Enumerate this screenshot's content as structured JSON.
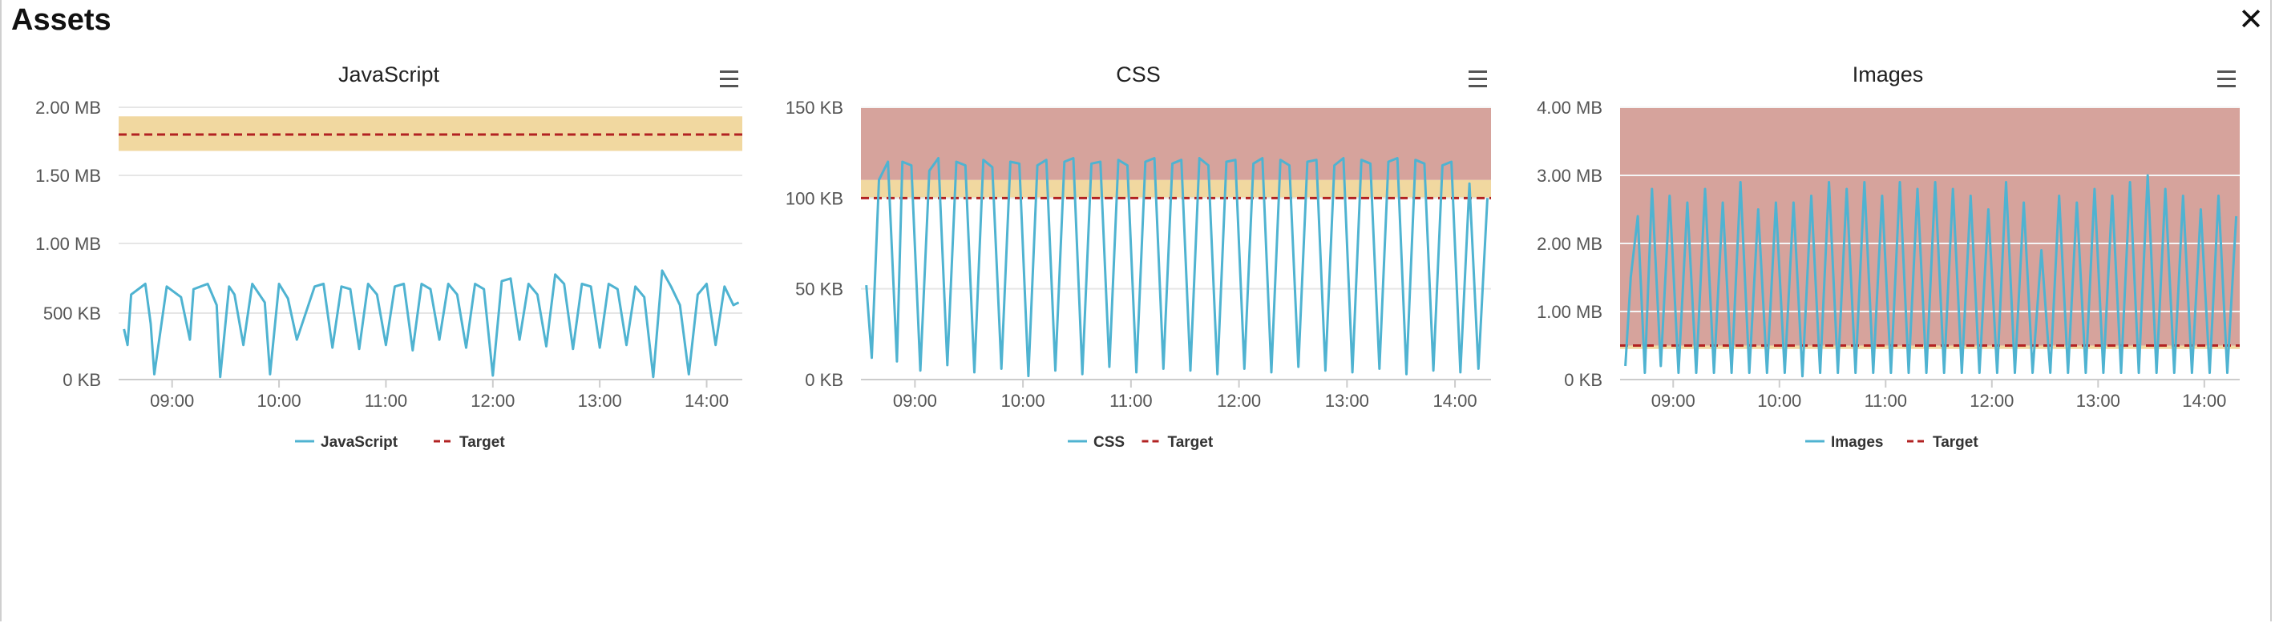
{
  "panel": {
    "title": "Assets",
    "close_label": "✕"
  },
  "colors": {
    "series": "#4fb3d1",
    "target": "#b22222",
    "warn_band": "#f1d8a0",
    "bad_band": "#d6a39c",
    "grid": "#e6e6e6",
    "axis_text": "#555555"
  },
  "icons": {
    "menu": "hamburger-menu-icon",
    "close": "close-icon"
  },
  "chart_data": [
    {
      "type": "line",
      "title": "JavaScript",
      "y_unit": "KB",
      "ylim": [
        0,
        2048
      ],
      "y_ticks": [
        {
          "v": 0,
          "label": "0 KB"
        },
        {
          "v": 500,
          "label": "500 KB"
        },
        {
          "v": 1024,
          "label": "1.00 MB"
        },
        {
          "v": 1536,
          "label": "1.50 MB"
        },
        {
          "v": 2048,
          "label": "2.00 MB"
        }
      ],
      "x_range": [
        "08:30",
        "14:20"
      ],
      "x_ticks": [
        "09:00",
        "10:00",
        "11:00",
        "12:00",
        "13:00",
        "14:00"
      ],
      "bands": [
        {
          "from": 1720,
          "to": 1980,
          "color": "warn"
        }
      ],
      "target": 1843,
      "series": [
        {
          "name": "JavaScript",
          "x": [
            "08:33",
            "08:35",
            "08:37",
            "08:45",
            "08:48",
            "08:50",
            "08:57",
            "09:05",
            "09:10",
            "09:12",
            "09:20",
            "09:25",
            "09:27",
            "09:32",
            "09:35",
            "09:40",
            "09:45",
            "09:52",
            "09:55",
            "10:00",
            "10:05",
            "10:10",
            "10:20",
            "10:25",
            "10:30",
            "10:35",
            "10:40",
            "10:45",
            "10:50",
            "10:55",
            "11:00",
            "11:05",
            "11:10",
            "11:15",
            "11:20",
            "11:25",
            "11:30",
            "11:35",
            "11:40",
            "11:45",
            "11:50",
            "11:55",
            "12:00",
            "12:05",
            "12:10",
            "12:15",
            "12:20",
            "12:25",
            "12:30",
            "12:35",
            "12:40",
            "12:45",
            "12:50",
            "12:55",
            "13:00",
            "13:05",
            "13:10",
            "13:15",
            "13:20",
            "13:25",
            "13:30",
            "13:35",
            "13:40",
            "13:45",
            "13:50",
            "13:55",
            "14:00",
            "14:05",
            "14:10",
            "14:15",
            "14:18"
          ],
          "values": [
            380,
            260,
            640,
            720,
            420,
            40,
            700,
            620,
            300,
            680,
            720,
            560,
            20,
            700,
            640,
            260,
            720,
            580,
            40,
            720,
            610,
            300,
            700,
            720,
            240,
            700,
            680,
            230,
            720,
            640,
            260,
            700,
            720,
            220,
            720,
            680,
            300,
            720,
            640,
            240,
            720,
            680,
            30,
            740,
            760,
            300,
            720,
            640,
            250,
            790,
            720,
            230,
            720,
            700,
            240,
            720,
            680,
            260,
            700,
            620,
            20,
            820,
            700,
            560,
            40,
            640,
            720,
            260,
            700,
            560,
            580
          ]
        }
      ]
    },
    {
      "type": "line",
      "title": "CSS",
      "y_unit": "KB",
      "ylim": [
        0,
        150
      ],
      "y_ticks": [
        {
          "v": 0,
          "label": "0 KB"
        },
        {
          "v": 50,
          "label": "50 KB"
        },
        {
          "v": 100,
          "label": "100 KB"
        },
        {
          "v": 150,
          "label": "150 KB"
        }
      ],
      "x_range": [
        "08:30",
        "14:20"
      ],
      "x_ticks": [
        "09:00",
        "10:00",
        "11:00",
        "12:00",
        "13:00",
        "14:00"
      ],
      "bands": [
        {
          "from": 100,
          "to": 110,
          "color": "warn"
        },
        {
          "from": 110,
          "to": 150,
          "color": "bad"
        }
      ],
      "target": 100,
      "series": [
        {
          "name": "CSS",
          "x": [
            "08:33",
            "08:36",
            "08:40",
            "08:45",
            "08:50",
            "08:53",
            "08:58",
            "09:03",
            "09:08",
            "09:13",
            "09:18",
            "09:23",
            "09:28",
            "09:33",
            "09:38",
            "09:43",
            "09:48",
            "09:53",
            "09:58",
            "10:03",
            "10:08",
            "10:13",
            "10:18",
            "10:23",
            "10:28",
            "10:33",
            "10:38",
            "10:43",
            "10:48",
            "10:53",
            "10:58",
            "11:03",
            "11:08",
            "11:13",
            "11:18",
            "11:23",
            "11:28",
            "11:33",
            "11:38",
            "11:43",
            "11:48",
            "11:53",
            "11:58",
            "12:03",
            "12:08",
            "12:13",
            "12:18",
            "12:23",
            "12:28",
            "12:33",
            "12:38",
            "12:43",
            "12:48",
            "12:53",
            "12:58",
            "13:03",
            "13:08",
            "13:13",
            "13:18",
            "13:23",
            "13:28",
            "13:33",
            "13:38",
            "13:43",
            "13:48",
            "13:53",
            "13:58",
            "14:03",
            "14:08",
            "14:13",
            "14:18"
          ],
          "values": [
            52,
            12,
            110,
            120,
            10,
            120,
            118,
            5,
            115,
            122,
            8,
            120,
            118,
            4,
            121,
            117,
            6,
            120,
            119,
            2,
            118,
            121,
            5,
            120,
            122,
            3,
            119,
            120,
            7,
            121,
            118,
            4,
            120,
            122,
            6,
            119,
            121,
            5,
            122,
            118,
            3,
            120,
            121,
            6,
            119,
            122,
            4,
            121,
            118,
            7,
            120,
            121,
            5,
            118,
            122,
            4,
            121,
            119,
            6,
            120,
            122,
            3,
            121,
            119,
            5,
            118,
            120,
            4,
            108,
            6,
            100
          ]
        }
      ]
    },
    {
      "type": "line",
      "title": "Images",
      "y_unit": "MB",
      "ylim": [
        0,
        4
      ],
      "y_ticks": [
        {
          "v": 0,
          "label": "0 KB"
        },
        {
          "v": 1,
          "label": "1.00 MB"
        },
        {
          "v": 2,
          "label": "2.00 MB"
        },
        {
          "v": 3,
          "label": "3.00 MB"
        },
        {
          "v": 4,
          "label": "4.00 MB"
        }
      ],
      "x_range": [
        "08:30",
        "14:20"
      ],
      "x_ticks": [
        "09:00",
        "10:00",
        "11:00",
        "12:00",
        "13:00",
        "14:00"
      ],
      "bands": [
        {
          "from": 0.45,
          "to": 0.5,
          "color": "warn"
        },
        {
          "from": 0.5,
          "to": 4,
          "color": "bad"
        }
      ],
      "target": 0.5,
      "series": [
        {
          "name": "Images",
          "x": [
            "08:33",
            "08:36",
            "08:40",
            "08:44",
            "08:48",
            "08:53",
            "08:58",
            "09:03",
            "09:08",
            "09:13",
            "09:18",
            "09:23",
            "09:28",
            "09:33",
            "09:38",
            "09:43",
            "09:48",
            "09:53",
            "09:58",
            "10:03",
            "10:08",
            "10:13",
            "10:18",
            "10:23",
            "10:28",
            "10:33",
            "10:38",
            "10:43",
            "10:48",
            "10:53",
            "10:58",
            "11:03",
            "11:08",
            "11:13",
            "11:18",
            "11:23",
            "11:28",
            "11:33",
            "11:38",
            "11:43",
            "11:48",
            "11:53",
            "11:58",
            "12:03",
            "12:08",
            "12:13",
            "12:18",
            "12:23",
            "12:28",
            "12:33",
            "12:38",
            "12:43",
            "12:48",
            "12:53",
            "12:58",
            "13:03",
            "13:08",
            "13:13",
            "13:18",
            "13:23",
            "13:28",
            "13:33",
            "13:38",
            "13:43",
            "13:48",
            "13:53",
            "13:58",
            "14:03",
            "14:08",
            "14:13",
            "14:18"
          ],
          "values": [
            0.2,
            1.5,
            2.4,
            0.1,
            2.8,
            0.2,
            2.7,
            0.1,
            2.6,
            0.1,
            2.8,
            0.1,
            2.6,
            0.1,
            2.9,
            0.1,
            2.5,
            0.1,
            2.6,
            0.1,
            2.6,
            0.05,
            2.7,
            0.1,
            2.9,
            0.1,
            2.8,
            0.1,
            2.9,
            0.1,
            2.7,
            0.1,
            2.9,
            0.1,
            2.8,
            0.1,
            2.9,
            0.1,
            2.8,
            0.1,
            2.7,
            0.1,
            2.5,
            0.1,
            2.9,
            0.1,
            2.6,
            0.1,
            1.9,
            0.1,
            2.7,
            0.1,
            2.6,
            0.1,
            2.8,
            0.1,
            2.7,
            0.1,
            2.9,
            0.1,
            3.0,
            0.1,
            2.8,
            0.1,
            2.7,
            0.1,
            2.5,
            0.1,
            2.7,
            0.1,
            2.4
          ]
        }
      ]
    }
  ],
  "legend": {
    "target_label": "Target"
  }
}
